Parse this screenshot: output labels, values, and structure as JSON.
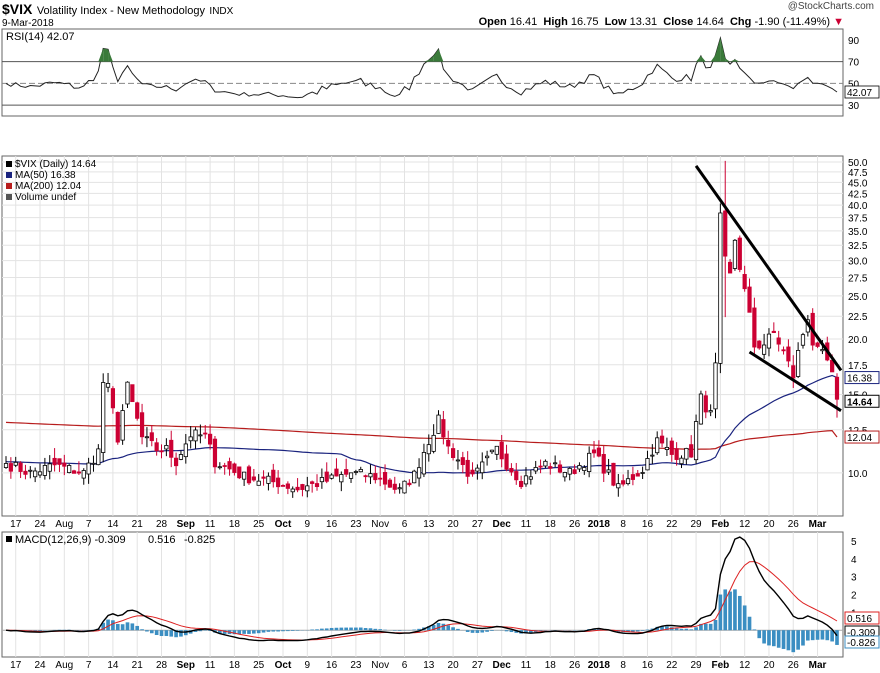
{
  "header": {
    "symbol": "$VIX",
    "name": "Volatility Index - New Methodology",
    "exchange": "INDX",
    "date": "9-Mar-2018",
    "watermark": "@StockCharts.com",
    "open_label": "Open",
    "open": "16.41",
    "high_label": "High",
    "high": "16.75",
    "low_label": "Low",
    "low": "13.31",
    "close_label": "Close",
    "close": "14.64",
    "chg_label": "Chg",
    "chg": "-1.90 (-11.49%)"
  },
  "colors": {
    "up": "#000000",
    "down": "#cc0033",
    "ma50": "#1a237e",
    "ma200": "#b71c1c",
    "rsi_fill": "#3a7a3a",
    "macd": "#000000",
    "signal": "#dd2222",
    "hist": "#3b8ec2"
  },
  "chart_data": [
    {
      "type": "line",
      "title": "RSI(14) 42.07",
      "ylim": [
        20,
        100
      ],
      "yticks": [
        "90",
        "70",
        "50",
        "30"
      ],
      "last_label": "42.07",
      "reference_lines": [
        70,
        50,
        30
      ]
    },
    {
      "type": "candlestick",
      "title": "$VIX (Daily) 14.64",
      "legend": [
        "$VIX (Daily) 14.64",
        "MA(50) 16.38",
        "MA(200) 12.04",
        "Volume undef"
      ],
      "ylim": [
        8,
        50
      ],
      "yticks": [
        "50.0",
        "47.5",
        "45.0",
        "42.5",
        "40.0",
        "37.5",
        "35.0",
        "32.5",
        "30.0",
        "27.5",
        "25.0",
        "22.5",
        "20.0",
        "17.5",
        "15.0",
        "12.5",
        "10.0"
      ],
      "last_labels": {
        "ma50": "16.38",
        "close": "14.64",
        "ma200": "12.04"
      },
      "x_ticks": [
        "17",
        "24",
        "Aug",
        "7",
        "14",
        "21",
        "28",
        "Sep",
        "11",
        "18",
        "25",
        "Oct",
        "9",
        "16",
        "23",
        "Nov",
        "6",
        "13",
        "20",
        "27",
        "Dec",
        "11",
        "18",
        "26",
        "2018",
        "8",
        "16",
        "22",
        "29",
        "Feb",
        "12",
        "20",
        "26",
        "Mar"
      ],
      "trendlines": [
        {
          "from": [
            "2018-01-29",
            49.0
          ],
          "to": [
            "2018-03-09",
            17.0
          ]
        },
        {
          "from": [
            "2018-02-13",
            18.7
          ],
          "to": [
            "2018-03-09",
            13.8
          ]
        }
      ],
      "series_close_segments": [
        {
          "range": "Jul 13 - Aug 7",
          "low": 9.4,
          "high": 12.3
        },
        {
          "range": "Aug 10 - Aug 18",
          "low": 12.0,
          "high": 17.3
        },
        {
          "range": "Aug 21 - Sep 8",
          "low": 10.8,
          "high": 15.5
        },
        {
          "range": "Sep 11 - Nov 3",
          "low": 9.2,
          "high": 12.0
        },
        {
          "range": "Nov 6 - Nov 17",
          "low": 9.5,
          "high": 14.6
        },
        {
          "range": "Nov 20 - Dec 29",
          "low": 9.0,
          "high": 14.2
        },
        {
          "range": "Jan 2 - Jan 31",
          "low": 8.9,
          "high": 15.0
        },
        {
          "range": "Feb 2 - Feb 9",
          "low": 17.3,
          "high": 50.3
        },
        {
          "range": "Feb 12 - Mar 9",
          "low": 13.3,
          "high": 28.0
        }
      ]
    },
    {
      "type": "line",
      "title": "MACD(12,26,9)",
      "legend": [
        "MACD(12,26,9) -0.309",
        "0.516",
        "-0.825"
      ],
      "ylim": [
        -1.5,
        5.5
      ],
      "yticks": [
        "5",
        "4",
        "3",
        "2",
        "1"
      ],
      "last_labels": {
        "signal": "0.516",
        "macd": "-0.309",
        "hist": "-0.826"
      },
      "x_ticks": [
        "17",
        "24",
        "Aug",
        "7",
        "14",
        "21",
        "28",
        "Sep",
        "11",
        "18",
        "25",
        "Oct",
        "9",
        "16",
        "23",
        "Nov",
        "6",
        "13",
        "20",
        "27",
        "Dec",
        "11",
        "18",
        "26",
        "2018",
        "8",
        "16",
        "22",
        "29",
        "Feb",
        "12",
        "20",
        "26",
        "Mar"
      ]
    }
  ]
}
